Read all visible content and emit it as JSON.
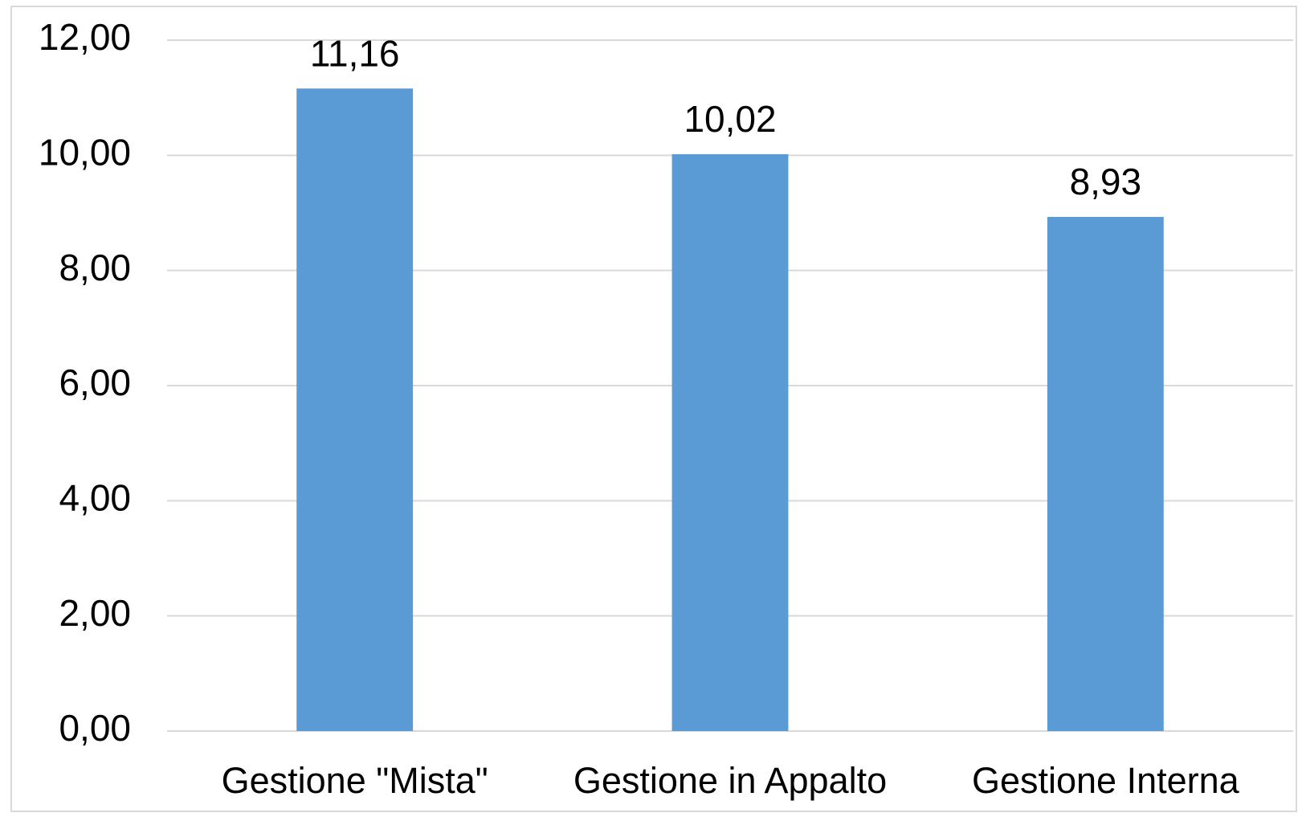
{
  "chart_data": {
    "type": "bar",
    "categories": [
      "Gestione \"Mista\"",
      "Gestione in Appalto",
      "Gestione Interna"
    ],
    "values": [
      11.16,
      10.02,
      8.93
    ],
    "value_labels": [
      "11,16",
      "10,02",
      "8,93"
    ],
    "color": "#5b9bd5",
    "ylim": [
      0,
      12
    ],
    "yticks": [
      {
        "value": 0,
        "label": "0,00"
      },
      {
        "value": 2,
        "label": "2,00"
      },
      {
        "value": 4,
        "label": "4,00"
      },
      {
        "value": 6,
        "label": "6,00"
      },
      {
        "value": 8,
        "label": "8,00"
      },
      {
        "value": 10,
        "label": "10,00"
      },
      {
        "value": 12,
        "label": "12,00"
      }
    ],
    "grid": true
  }
}
